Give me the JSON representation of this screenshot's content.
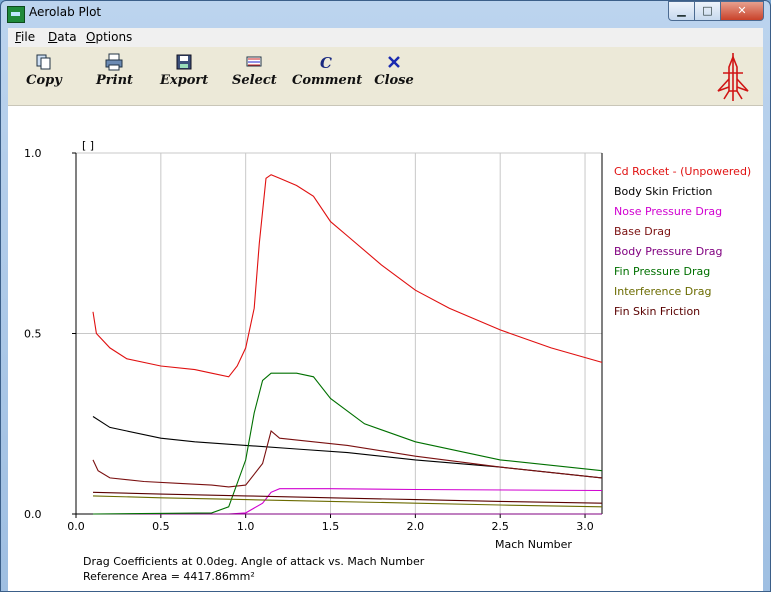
{
  "window": {
    "title": "Aerolab Plot"
  },
  "menu": [
    "File",
    "Data",
    "Options"
  ],
  "toolbar": [
    {
      "label": "Copy",
      "icon": "copy-icon"
    },
    {
      "label": "Print",
      "icon": "print-icon"
    },
    {
      "label": "Export",
      "icon": "export-icon"
    },
    {
      "label": "Select",
      "icon": "select-icon"
    },
    {
      "label": "Comment",
      "icon": "comment-icon"
    },
    {
      "label": "Close",
      "icon": "close-icon"
    }
  ],
  "plot": {
    "unit_label": "[ ]",
    "footer_line1": "Drag Coefficients at 0.0deg. Angle of attack vs. Mach Number",
    "footer_line2": "Reference Area =  4417.86mm²"
  },
  "chart_data": {
    "type": "line",
    "xlabel": "Mach Number",
    "xlim": [
      0,
      3.1
    ],
    "ylim": [
      0,
      1.0
    ],
    "xticks": [
      "0.0",
      "0.5",
      "1.0",
      "1.5",
      "2.0",
      "2.5",
      "3.0"
    ],
    "yticks": [
      "0.0",
      "0.5",
      "1.0"
    ],
    "grid": true,
    "legend_position": "right",
    "series": [
      {
        "name": "Cd Rocket - (Unpowered)",
        "color": "#e01010",
        "x": [
          0.1,
          0.12,
          0.2,
          0.3,
          0.5,
          0.7,
          0.8,
          0.9,
          0.95,
          1.0,
          1.05,
          1.08,
          1.12,
          1.15,
          1.2,
          1.3,
          1.4,
          1.5,
          1.6,
          1.8,
          2.0,
          2.2,
          2.5,
          2.8,
          3.1
        ],
        "y": [
          0.56,
          0.5,
          0.46,
          0.43,
          0.41,
          0.4,
          0.39,
          0.38,
          0.41,
          0.46,
          0.57,
          0.75,
          0.93,
          0.94,
          0.93,
          0.91,
          0.88,
          0.81,
          0.77,
          0.69,
          0.62,
          0.57,
          0.51,
          0.46,
          0.42
        ]
      },
      {
        "name": "Body Skin Friction",
        "color": "#000000",
        "x": [
          0.1,
          0.2,
          0.3,
          0.5,
          0.7,
          1.0,
          1.3,
          1.6,
          2.0,
          2.5,
          3.1
        ],
        "y": [
          0.27,
          0.24,
          0.23,
          0.21,
          0.2,
          0.19,
          0.18,
          0.17,
          0.15,
          0.13,
          0.1
        ]
      },
      {
        "name": "Nose Pressure Drag",
        "color": "#d000d0",
        "x": [
          0.1,
          0.6,
          0.9,
          1.0,
          1.1,
          1.15,
          1.2,
          1.5,
          2.0,
          3.1
        ],
        "y": [
          0.0,
          0.0,
          0.0,
          0.003,
          0.03,
          0.06,
          0.07,
          0.07,
          0.068,
          0.065
        ]
      },
      {
        "name": "Base Drag",
        "color": "#7a1010",
        "x": [
          0.1,
          0.13,
          0.2,
          0.4,
          0.6,
          0.8,
          0.9,
          1.0,
          1.1,
          1.15,
          1.2,
          1.4,
          1.6,
          2.0,
          2.5,
          3.1
        ],
        "y": [
          0.15,
          0.12,
          0.1,
          0.09,
          0.085,
          0.08,
          0.075,
          0.08,
          0.14,
          0.23,
          0.21,
          0.2,
          0.19,
          0.16,
          0.13,
          0.1
        ]
      },
      {
        "name": "Body Pressure Drag",
        "color": "#800080",
        "x": [
          0.1,
          1.0,
          2.0,
          3.1
        ],
        "y": [
          0.0,
          0.0,
          0.0,
          0.0
        ]
      },
      {
        "name": "Fin Pressure Drag",
        "color": "#007000",
        "x": [
          0.1,
          0.8,
          0.9,
          1.0,
          1.05,
          1.1,
          1.15,
          1.3,
          1.4,
          1.5,
          1.7,
          2.0,
          2.5,
          3.1
        ],
        "y": [
          0.0,
          0.003,
          0.02,
          0.15,
          0.28,
          0.37,
          0.39,
          0.39,
          0.38,
          0.32,
          0.25,
          0.2,
          0.15,
          0.12
        ]
      },
      {
        "name": "Interference Drag",
        "color": "#6b6b00",
        "x": [
          0.1,
          0.5,
          1.0,
          1.5,
          2.0,
          2.5,
          3.1
        ],
        "y": [
          0.05,
          0.045,
          0.04,
          0.035,
          0.03,
          0.025,
          0.02
        ]
      },
      {
        "name": "Fin Skin Friction",
        "color": "#5a0000",
        "x": [
          0.1,
          0.5,
          1.0,
          1.5,
          2.0,
          2.5,
          3.1
        ],
        "y": [
          0.06,
          0.055,
          0.05,
          0.045,
          0.04,
          0.035,
          0.03
        ]
      }
    ]
  }
}
